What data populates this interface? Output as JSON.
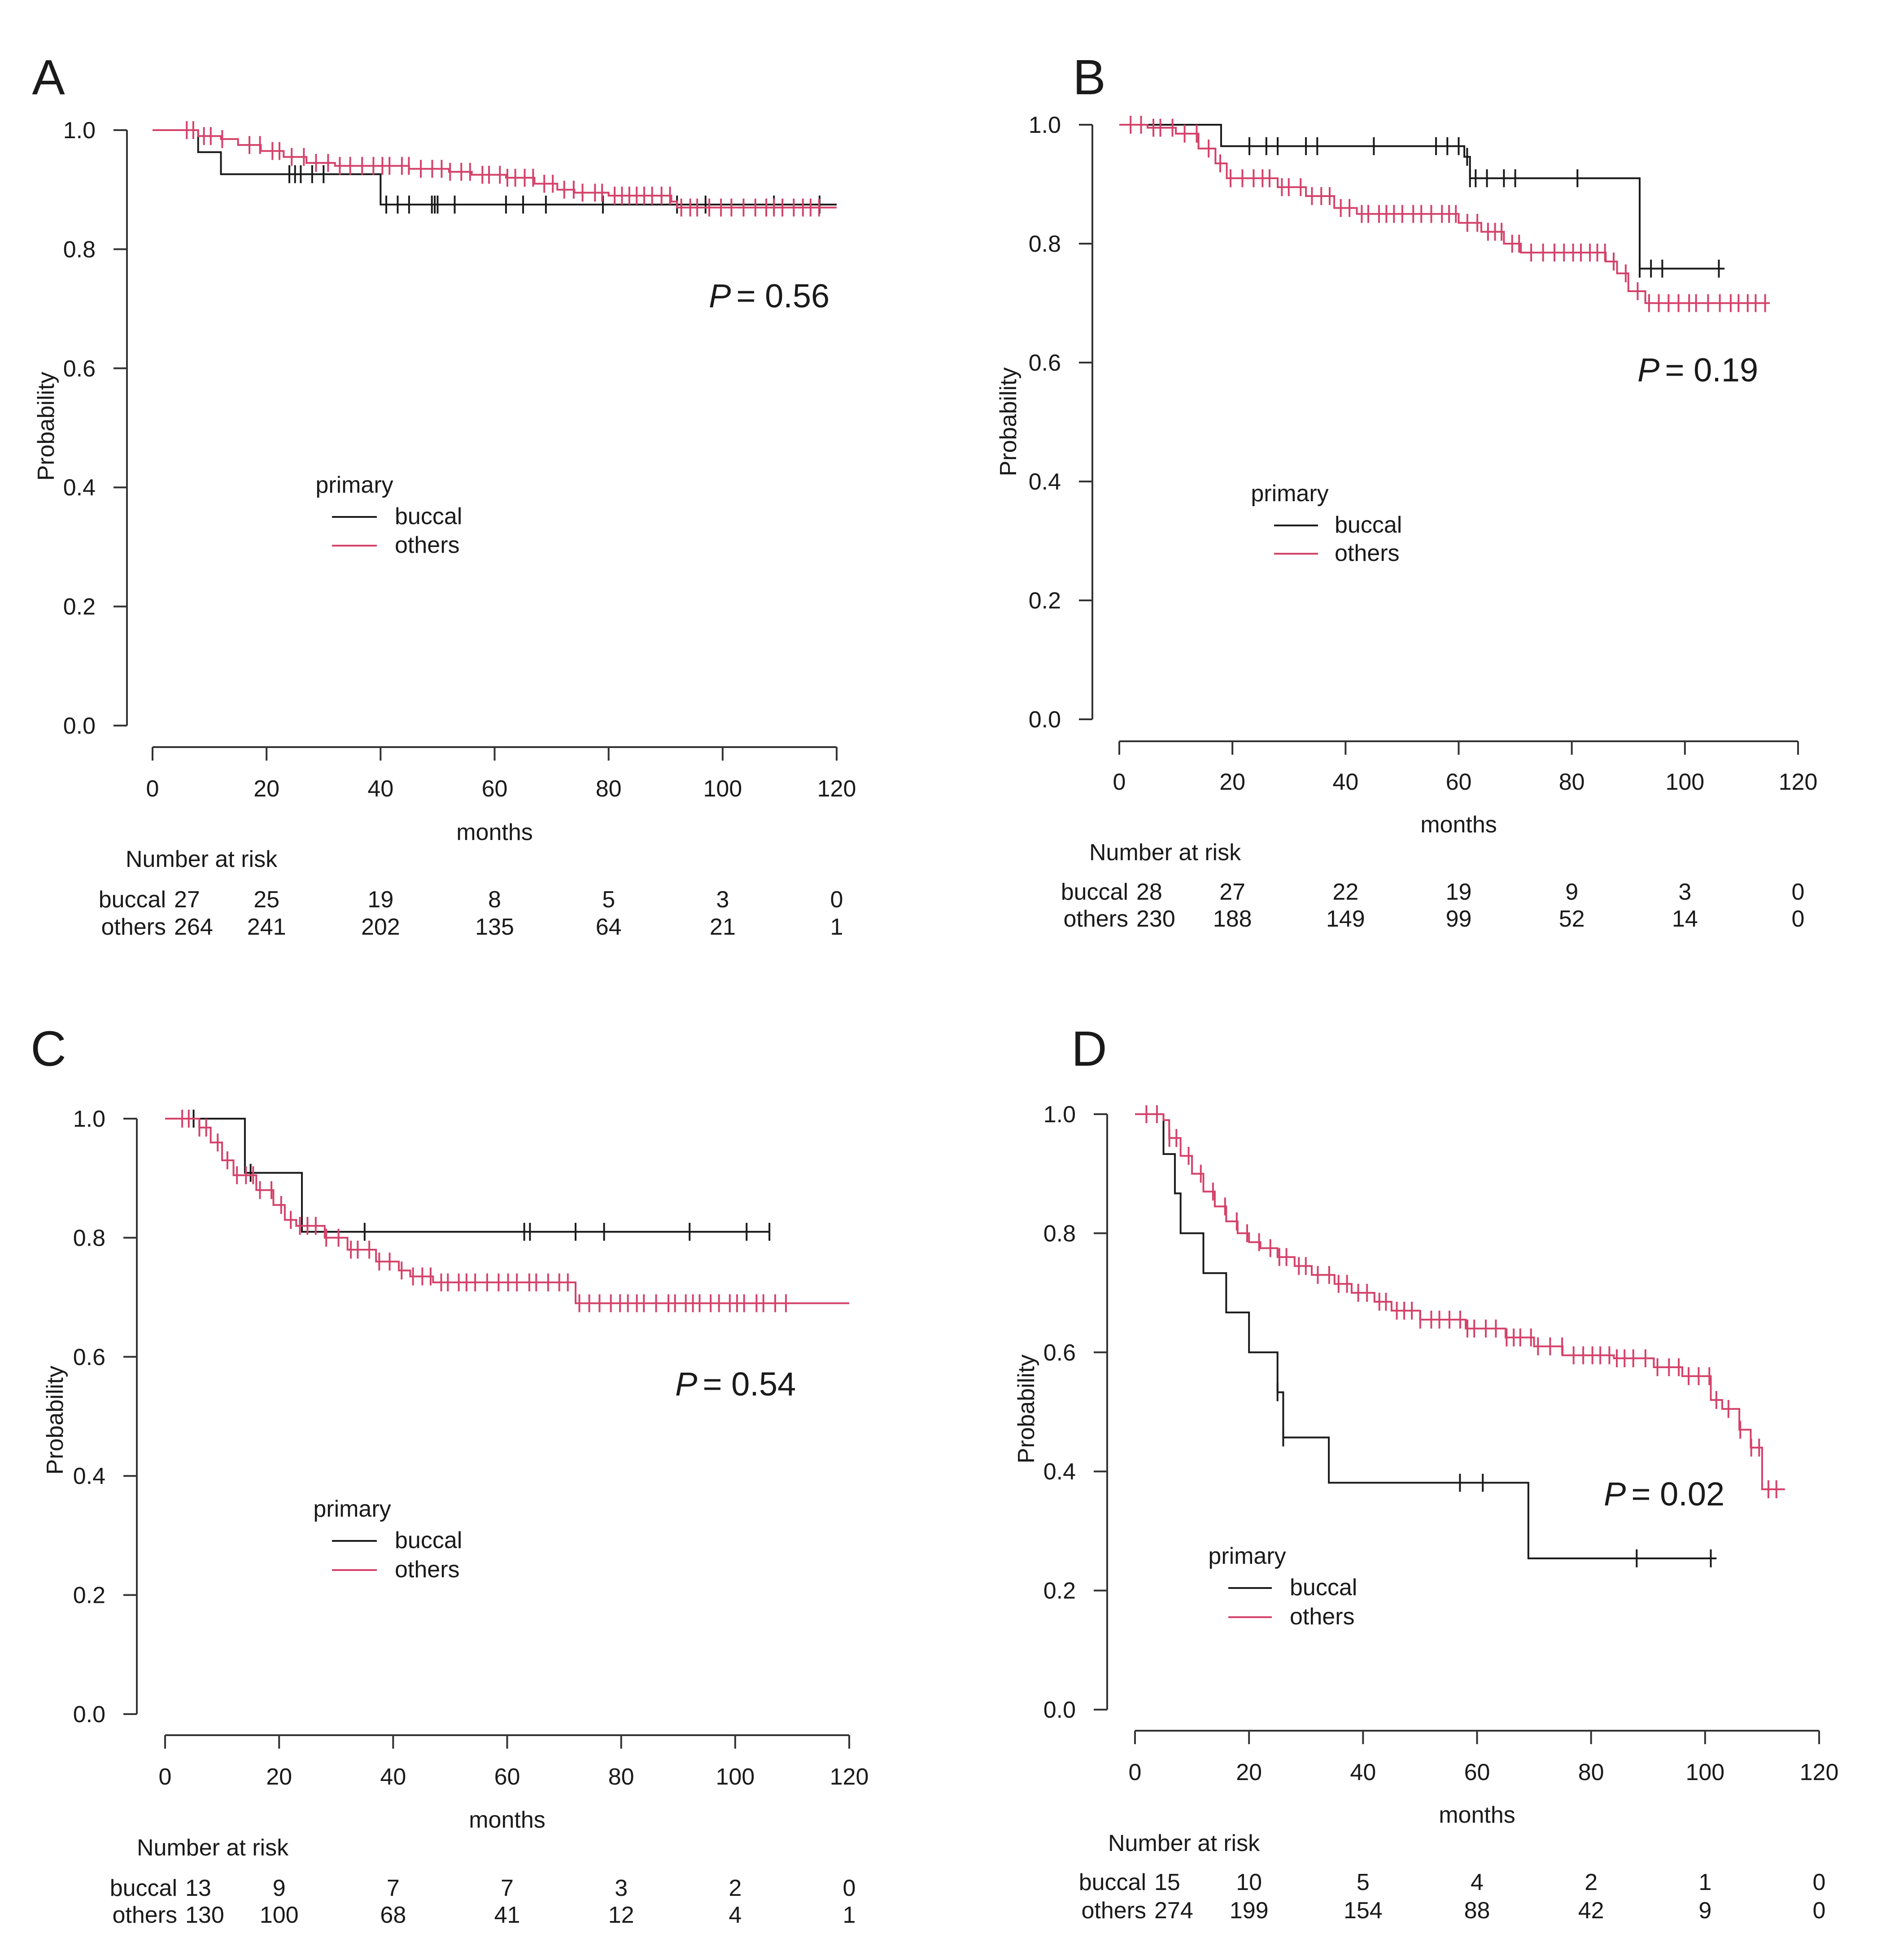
{
  "chart_data": [
    {
      "type": "line",
      "subtype": "kaplan-meier",
      "panel": "A",
      "xlabel": "months",
      "ylabel": "Probability",
      "xlim": [
        0,
        120
      ],
      "ylim": [
        0,
        1
      ],
      "xticks": [
        "0",
        "20",
        "40",
        "60",
        "80",
        "100",
        "120"
      ],
      "yticks": [
        "0.0",
        "0.2",
        "0.4",
        "0.6",
        "0.8",
        "1.0"
      ],
      "pvalue": "= 0.56",
      "pvalue_symbol": "P",
      "legend": {
        "title": "primary",
        "entries": [
          "buccal",
          "others"
        ]
      },
      "series": [
        {
          "name": "buccal",
          "color": "#1a1a1a",
          "steps": [
            [
              0,
              1.0
            ],
            [
              8,
              0.963
            ],
            [
              12,
              0.926
            ],
            [
              40,
              0.875
            ],
            [
              120,
              0.875
            ]
          ],
          "censors": [
            24,
            25,
            26,
            28,
            30,
            41,
            43,
            45,
            49,
            49.5,
            50,
            53,
            62,
            65,
            69,
            79,
            92,
            97,
            109,
            117
          ]
        },
        {
          "name": "others",
          "color": "#d4426a",
          "steps": [
            [
              0,
              1.0
            ],
            [
              8,
              0.99
            ],
            [
              12,
              0.985
            ],
            [
              15,
              0.975
            ],
            [
              19,
              0.965
            ],
            [
              23,
              0.955
            ],
            [
              27,
              0.945
            ],
            [
              32,
              0.94
            ],
            [
              45,
              0.935
            ],
            [
              52,
              0.93
            ],
            [
              56,
              0.925
            ],
            [
              62,
              0.92
            ],
            [
              67,
              0.91
            ],
            [
              71,
              0.9
            ],
            [
              74,
              0.895
            ],
            [
              80,
              0.89
            ],
            [
              91,
              0.88
            ],
            [
              92,
              0.87
            ],
            [
              120,
              0.87
            ]
          ],
          "censors_dense": [
            [
              6,
              13
            ],
            [
              17,
              118
            ]
          ]
        }
      ],
      "risk_table": {
        "title": "Number at risk",
        "times": [
          "0",
          "20",
          "40",
          "60",
          "80",
          "100",
          "120"
        ],
        "rows": [
          {
            "label": "buccal",
            "counts": [
              "27",
              "25",
              "19",
              "8",
              "5",
              "3",
              "0"
            ]
          },
          {
            "label": "others",
            "counts": [
              "264",
              "241",
              "202",
              "135",
              "64",
              "21",
              "1"
            ]
          }
        ]
      }
    },
    {
      "type": "line",
      "subtype": "kaplan-meier",
      "panel": "B",
      "xlabel": "months",
      "ylabel": "Probability",
      "xlim": [
        0,
        120
      ],
      "ylim": [
        0,
        1
      ],
      "xticks": [
        "0",
        "20",
        "40",
        "60",
        "80",
        "100",
        "120"
      ],
      "yticks": [
        "0.0",
        "0.2",
        "0.4",
        "0.6",
        "0.8",
        "1.0"
      ],
      "pvalue": "= 0.19",
      "pvalue_symbol": "P",
      "legend": {
        "title": "primary",
        "entries": [
          "buccal",
          "others"
        ]
      },
      "series": [
        {
          "name": "buccal",
          "color": "#1a1a1a",
          "steps": [
            [
              0,
              1.0
            ],
            [
              18,
              0.964
            ],
            [
              61,
              0.946
            ],
            [
              62,
              0.91
            ],
            [
              92,
              0.758
            ],
            [
              107,
              0.758
            ]
          ],
          "censors": [
            23,
            26,
            28,
            33,
            35,
            45,
            56,
            58,
            60,
            61.5,
            62,
            63,
            65,
            68,
            70,
            81,
            92,
            94,
            96,
            106
          ]
        },
        {
          "name": "others",
          "color": "#d4426a",
          "steps": [
            [
              0,
              1.0
            ],
            [
              5,
              0.995
            ],
            [
              10,
              0.985
            ],
            [
              14,
              0.96
            ],
            [
              17,
              0.935
            ],
            [
              19,
              0.91
            ],
            [
              28,
              0.895
            ],
            [
              33,
              0.88
            ],
            [
              38,
              0.86
            ],
            [
              42,
              0.85
            ],
            [
              60,
              0.835
            ],
            [
              64,
              0.82
            ],
            [
              68,
              0.8
            ],
            [
              71,
              0.785
            ],
            [
              86,
              0.77
            ],
            [
              88,
              0.75
            ],
            [
              90,
              0.72
            ],
            [
              93,
              0.7
            ],
            [
              115,
              0.7
            ]
          ],
          "censors_dense": [
            [
              2,
              115
            ]
          ]
        }
      ],
      "risk_table": {
        "title": "Number at risk",
        "times": [
          "0",
          "20",
          "40",
          "60",
          "80",
          "100",
          "120"
        ],
        "rows": [
          {
            "label": "buccal",
            "counts": [
              "28",
              "27",
              "22",
              "19",
              "9",
              "3",
              "0"
            ]
          },
          {
            "label": "others",
            "counts": [
              "230",
              "188",
              "149",
              "99",
              "52",
              "14",
              "0"
            ]
          }
        ]
      }
    },
    {
      "type": "line",
      "subtype": "kaplan-meier",
      "panel": "C",
      "xlabel": "months",
      "ylabel": "Probability",
      "xlim": [
        0,
        120
      ],
      "ylim": [
        0,
        1
      ],
      "xticks": [
        "0",
        "20",
        "40",
        "60",
        "80",
        "100",
        "120"
      ],
      "yticks": [
        "0.0",
        "0.2",
        "0.4",
        "0.6",
        "0.8",
        "1.0"
      ],
      "pvalue": "= 0.54",
      "pvalue_symbol": "P",
      "legend": {
        "title": "primary",
        "entries": [
          "buccal",
          "others"
        ]
      },
      "series": [
        {
          "name": "buccal",
          "color": "#1a1a1a",
          "steps": [
            [
              0,
              1.0
            ],
            [
              14,
              0.909
            ],
            [
              24,
              0.81
            ],
            [
              106,
              0.81
            ]
          ],
          "censors": [
            5,
            15,
            35,
            63,
            64,
            72,
            77,
            92,
            102,
            106
          ]
        },
        {
          "name": "others",
          "color": "#d4426a",
          "steps": [
            [
              0,
              1.0
            ],
            [
              6,
              0.985
            ],
            [
              8,
              0.96
            ],
            [
              10,
              0.93
            ],
            [
              12,
              0.905
            ],
            [
              16,
              0.88
            ],
            [
              19,
              0.855
            ],
            [
              21,
              0.83
            ],
            [
              23,
              0.82
            ],
            [
              28,
              0.8
            ],
            [
              32,
              0.78
            ],
            [
              37,
              0.76
            ],
            [
              41,
              0.745
            ],
            [
              43,
              0.735
            ],
            [
              47,
              0.725
            ],
            [
              72,
              0.69
            ],
            [
              120,
              0.69
            ]
          ],
          "censors_dense": [
            [
              3,
              110
            ]
          ]
        }
      ],
      "risk_table": {
        "title": "Number at risk",
        "times": [
          "0",
          "20",
          "40",
          "60",
          "80",
          "100",
          "120"
        ],
        "rows": [
          {
            "label": "buccal",
            "counts": [
              "13",
              "9",
              "7",
              "7",
              "3",
              "2",
              "0"
            ]
          },
          {
            "label": "others",
            "counts": [
              "130",
              "100",
              "68",
              "41",
              "12",
              "4",
              "1"
            ]
          }
        ]
      }
    },
    {
      "type": "line",
      "subtype": "kaplan-meier",
      "panel": "D",
      "xlabel": "months",
      "ylabel": "Probability",
      "xlim": [
        0,
        120
      ],
      "ylim": [
        0,
        1
      ],
      "xticks": [
        "0",
        "20",
        "40",
        "60",
        "80",
        "100",
        "120"
      ],
      "yticks": [
        "0.0",
        "0.2",
        "0.4",
        "0.6",
        "0.8",
        "1.0"
      ],
      "pvalue": "= 0.02",
      "pvalue_symbol": "P",
      "legend": {
        "title": "primary",
        "entries": [
          "buccal",
          "others"
        ]
      },
      "series": [
        {
          "name": "buccal",
          "color": "#1a1a1a",
          "steps": [
            [
              0,
              1.0
            ],
            [
              5,
              0.933
            ],
            [
              7,
              0.867
            ],
            [
              8,
              0.8
            ],
            [
              12,
              0.733
            ],
            [
              16,
              0.667
            ],
            [
              20,
              0.6
            ],
            [
              25,
              0.533
            ],
            [
              26,
              0.457
            ],
            [
              34,
              0.381
            ],
            [
              69,
              0.254
            ],
            [
              102,
              0.254
            ]
          ],
          "censors": [
            25,
            26,
            57,
            61,
            88,
            101
          ]
        },
        {
          "name": "others",
          "color": "#d4426a",
          "steps": [
            [
              0,
              1.0
            ],
            [
              5,
              0.99
            ],
            [
              6,
              0.96
            ],
            [
              8,
              0.93
            ],
            [
              10,
              0.9
            ],
            [
              12,
              0.87
            ],
            [
              14,
              0.845
            ],
            [
              16,
              0.82
            ],
            [
              18,
              0.8
            ],
            [
              20,
              0.785
            ],
            [
              22,
              0.775
            ],
            [
              25,
              0.76
            ],
            [
              28,
              0.745
            ],
            [
              31,
              0.73
            ],
            [
              35,
              0.715
            ],
            [
              38,
              0.7
            ],
            [
              42,
              0.685
            ],
            [
              45,
              0.67
            ],
            [
              50,
              0.655
            ],
            [
              58,
              0.64
            ],
            [
              65,
              0.625
            ],
            [
              70,
              0.61
            ],
            [
              75,
              0.595
            ],
            [
              84,
              0.59
            ],
            [
              91,
              0.575
            ],
            [
              96,
              0.56
            ],
            [
              101,
              0.52
            ],
            [
              103,
              0.505
            ],
            [
              106,
              0.47
            ],
            [
              108,
              0.44
            ],
            [
              110,
              0.37
            ],
            [
              114,
              0.37
            ]
          ],
          "censors_dense": [
            [
              2,
              114
            ]
          ]
        }
      ],
      "risk_table": {
        "title": "Number at risk",
        "times": [
          "0",
          "20",
          "40",
          "60",
          "80",
          "100",
          "120"
        ],
        "rows": [
          {
            "label": "buccal",
            "counts": [
              "15",
              "10",
              "5",
              "4",
              "2",
              "1",
              "0"
            ]
          },
          {
            "label": "others",
            "counts": [
              "274",
              "199",
              "154",
              "88",
              "42",
              "9",
              "0"
            ]
          }
        ]
      }
    }
  ]
}
